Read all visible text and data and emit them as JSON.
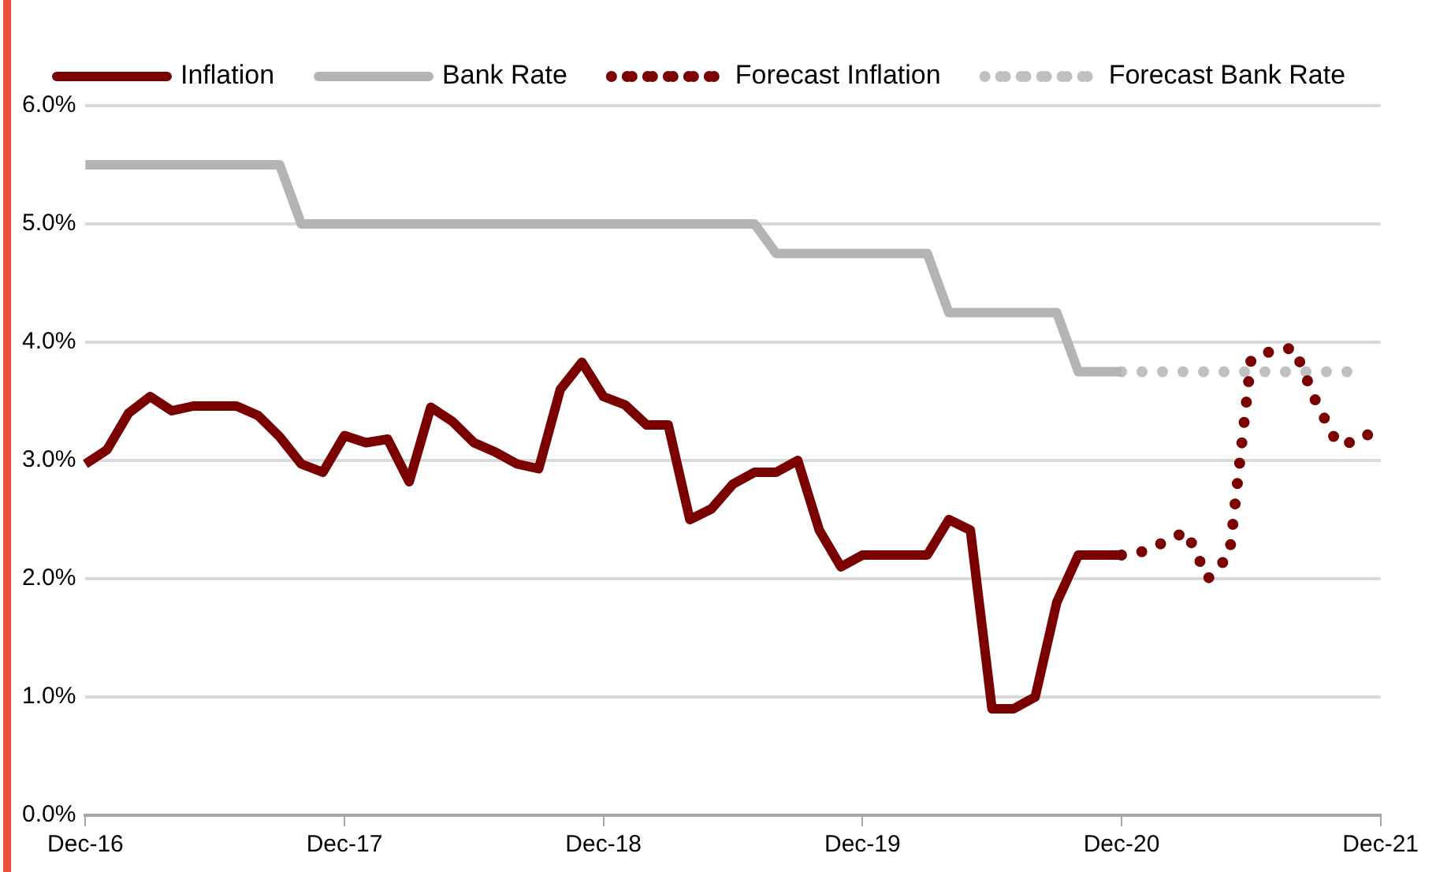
{
  "chart_data": {
    "type": "line",
    "categories": [
      "Dec-16",
      null,
      null,
      null,
      null,
      null,
      null,
      null,
      null,
      null,
      null,
      null,
      "Dec-17",
      null,
      null,
      null,
      null,
      null,
      null,
      null,
      null,
      null,
      null,
      null,
      "Dec-18",
      null,
      null,
      null,
      null,
      null,
      null,
      null,
      null,
      null,
      null,
      null,
      "Dec-19",
      null,
      null,
      null,
      null,
      null,
      null,
      null,
      null,
      null,
      null,
      null,
      "Dec-20",
      null,
      null,
      null,
      null,
      null,
      null,
      null,
      null,
      null,
      null,
      null,
      "Dec-21"
    ],
    "series": [
      {
        "name": "Inflation",
        "color": "#7b0000",
        "values": [
          2.97,
          3.09,
          3.4,
          3.54,
          3.42,
          3.46,
          3.46,
          3.46,
          3.38,
          3.2,
          2.97,
          2.9,
          3.21,
          3.15,
          3.18,
          2.82,
          3.45,
          3.33,
          3.15,
          3.07,
          2.97,
          2.93,
          3.6,
          3.83,
          3.54,
          3.47,
          3.3,
          3.3,
          2.5,
          2.59,
          2.8,
          2.9,
          2.9,
          3.0,
          2.41,
          2.1,
          2.2,
          2.2,
          2.2,
          2.2,
          2.5,
          2.41,
          0.9,
          0.9,
          1.0,
          1.8,
          2.2,
          2.2,
          2.2,
          null,
          null,
          null,
          null,
          null,
          null,
          null,
          null,
          null,
          null,
          null,
          null
        ]
      },
      {
        "name": "Bank Rate",
        "color": "#b4b4b6",
        "values": [
          5.5,
          5.5,
          5.5,
          5.5,
          5.5,
          5.5,
          5.5,
          5.5,
          5.5,
          5.5,
          5.0,
          5.0,
          5.0,
          5.0,
          5.0,
          5.0,
          5.0,
          5.0,
          5.0,
          5.0,
          5.0,
          5.0,
          5.0,
          5.0,
          5.0,
          5.0,
          5.0,
          5.0,
          5.0,
          5.0,
          5.0,
          5.0,
          4.75,
          4.75,
          4.75,
          4.75,
          4.75,
          4.75,
          4.75,
          4.75,
          4.25,
          4.25,
          4.25,
          4.25,
          4.25,
          4.25,
          3.75,
          3.75,
          3.75,
          null,
          null,
          null,
          null,
          null,
          null,
          null,
          null,
          null,
          null,
          null,
          null
        ]
      },
      {
        "name": "Forecast Inflation",
        "color": "#7b0000",
        "line_style": "dotted",
        "values": [
          null,
          null,
          null,
          null,
          null,
          null,
          null,
          null,
          null,
          null,
          null,
          null,
          null,
          null,
          null,
          null,
          null,
          null,
          null,
          null,
          null,
          null,
          null,
          null,
          null,
          null,
          null,
          null,
          null,
          null,
          null,
          null,
          null,
          null,
          null,
          null,
          null,
          null,
          null,
          null,
          null,
          null,
          null,
          null,
          null,
          null,
          null,
          null,
          2.2,
          2.23,
          2.31,
          2.4,
          2.0,
          2.2,
          3.85,
          3.93,
          3.95,
          3.5,
          3.14,
          3.16,
          3.3
        ]
      },
      {
        "name": "Forecast Bank Rate",
        "color": "#c0c0c0",
        "line_style": "dotted",
        "values": [
          null,
          null,
          null,
          null,
          null,
          null,
          null,
          null,
          null,
          null,
          null,
          null,
          null,
          null,
          null,
          null,
          null,
          null,
          null,
          null,
          null,
          null,
          null,
          null,
          null,
          null,
          null,
          null,
          null,
          null,
          null,
          null,
          null,
          null,
          null,
          null,
          null,
          null,
          null,
          null,
          null,
          null,
          null,
          null,
          null,
          null,
          null,
          null,
          3.75,
          3.75,
          3.75,
          3.75,
          3.75,
          3.75,
          3.75,
          3.75,
          3.75,
          3.75,
          3.75,
          3.75,
          null
        ]
      }
    ],
    "ylim": [
      0,
      6
    ],
    "yticks": [
      {
        "value": 0,
        "label": "0.0%"
      },
      {
        "value": 1,
        "label": "1.0%"
      },
      {
        "value": 2,
        "label": "2.0%"
      },
      {
        "value": 3,
        "label": "3.0%"
      },
      {
        "value": 4,
        "label": "4.0%"
      },
      {
        "value": 5,
        "label": "5.0%"
      },
      {
        "value": 6,
        "label": "6.0%"
      }
    ],
    "grid": "y",
    "legend": "top",
    "marker": "none",
    "line_style": "solid"
  }
}
